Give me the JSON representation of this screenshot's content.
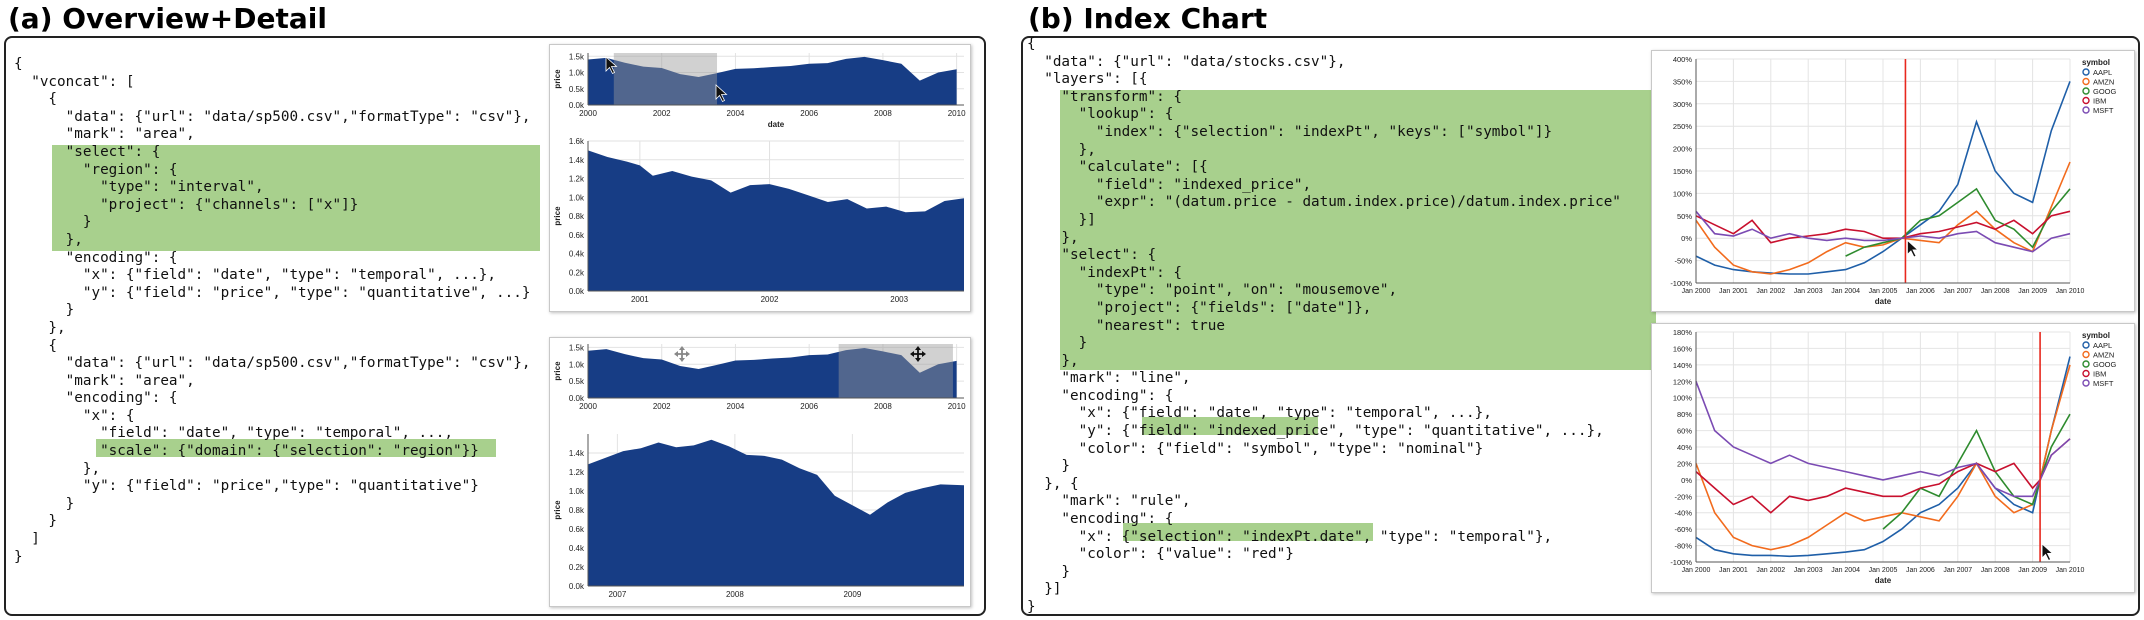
{
  "panel_a": {
    "title": "(a) Overview+Detail",
    "code_lines": [
      "{",
      "  \"vconcat\": [",
      "    {",
      "      \"data\": {\"url\": \"data/sp500.csv\",\"formatType\": \"csv\"},",
      "      \"mark\": \"area\",",
      "      \"select\": {",
      "        \"region\": {",
      "          \"type\": \"interval\",",
      "          \"project\": {\"channels\": [\"x\"]}",
      "        }",
      "      },",
      "      \"encoding\": {",
      "        \"x\": {\"field\": \"date\", \"type\": \"temporal\", ...},",
      "        \"y\": {\"field\": \"price\", \"type\": \"quantitative\", ...}",
      "      }",
      "    },",
      "    {",
      "      \"data\": {\"url\": \"data/sp500.csv\",\"formatType\": \"csv\"},",
      "      \"mark\": \"area\",",
      "      \"encoding\": {",
      "        \"x\": {",
      "          \"field\": \"date\", \"type\": \"temporal\", ...,",
      "          \"scale\": {\"domain\": {\"selection\": \"region\"}}",
      "        },",
      "        \"y\": {\"field\": \"price\",\"type\": \"quantitative\"}",
      "      }",
      "    }",
      "  ]",
      "}"
    ]
  },
  "panel_b": {
    "title": "(b) Index Chart",
    "code_lines": [
      "{",
      "  \"data\": {\"url\": \"data/stocks.csv\"},",
      "  \"layers\": [{",
      "    \"transform\": {",
      "      \"lookup\": {",
      "        \"index\": {\"selection\": \"indexPt\", \"keys\": [\"symbol\"]}",
      "      },",
      "      \"calculate\": [{",
      "        \"field\": \"indexed_price\",",
      "        \"expr\": \"(datum.price - datum.index.price)/datum.index.price\"",
      "      }]",
      "    },",
      "    \"select\": {",
      "      \"indexPt\": {",
      "        \"type\": \"point\", \"on\": \"mousemove\",",
      "        \"project\": {\"fields\": [\"date\"]},",
      "        \"nearest\": true",
      "      }",
      "    },",
      "    \"mark\": \"line\",",
      "    \"encoding\": {",
      "      \"x\": {\"field\": \"date\", \"type\": \"temporal\", ...},",
      "      \"y\": {\"field\": \"indexed_price\", \"type\": \"quantitative\", ...},",
      "      \"color\": {\"field\": \"symbol\", \"type\": \"nominal\"}",
      "    }",
      "  }, {",
      "    \"mark\": \"rule\",",
      "    \"encoding\": {",
      "      \"x\": {\"selection\": \"indexPt.date\", \"type\": \"temporal\"},",
      "      \"color\": {\"value\": \"red\"}",
      "    }",
      "  }]",
      "}"
    ]
  },
  "colors": {
    "highlight": "#a8d08d",
    "area_fill": "#173d85",
    "brush": "#c8c8c8",
    "rule": "#e8281e",
    "AAPL": "#1f5fa8",
    "AMZN": "#f26b1d",
    "GOOG": "#2e8b2e",
    "IBM": "#c8102e",
    "MSFT": "#7b4bb3"
  },
  "chart_data": [
    {
      "id": "a1-overview",
      "type": "area",
      "xlabel": "date",
      "ylabel": "price",
      "x_ticks": [
        "2000",
        "2002",
        "2004",
        "2006",
        "2008",
        "2010"
      ],
      "y_ticks": [
        "0.0k",
        "0.5k",
        "1.0k",
        "1.5k"
      ],
      "ylim": [
        0,
        1600
      ],
      "xlim": [
        2000,
        2010.2
      ],
      "brush": [
        2000.7,
        2003.5
      ],
      "x": [
        2000.0,
        2000.5,
        2001.0,
        2001.5,
        2002.0,
        2002.5,
        2003.0,
        2003.5,
        2004.0,
        2004.5,
        2005.0,
        2005.5,
        2006.0,
        2006.5,
        2007.0,
        2007.5,
        2008.0,
        2008.5,
        2009.0,
        2009.5,
        2010.0
      ],
      "values": [
        1400,
        1450,
        1300,
        1180,
        1140,
        950,
        860,
        980,
        1110,
        1130,
        1170,
        1200,
        1270,
        1290,
        1420,
        1480,
        1380,
        1270,
        750,
        1000,
        1100
      ]
    },
    {
      "id": "a1-detail",
      "type": "area",
      "xlabel": "",
      "ylabel": "price",
      "x_ticks": [
        "2001",
        "2002",
        "2003"
      ],
      "y_ticks": [
        "0.0k",
        "0.2k",
        "0.4k",
        "0.6k",
        "0.8k",
        "1.0k",
        "1.2k",
        "1.4k",
        "1.6k"
      ],
      "ylim": [
        0,
        1600
      ],
      "xlim": [
        2000.6,
        2003.5
      ],
      "x": [
        2000.6,
        2000.75,
        2000.9,
        2001.0,
        2001.1,
        2001.25,
        2001.4,
        2001.55,
        2001.7,
        2001.85,
        2002.0,
        2002.15,
        2002.3,
        2002.45,
        2002.6,
        2002.75,
        2002.9,
        2003.05,
        2003.2,
        2003.35,
        2003.5
      ],
      "values": [
        1500,
        1430,
        1380,
        1340,
        1230,
        1280,
        1220,
        1180,
        1050,
        1130,
        1140,
        1090,
        1020,
        950,
        980,
        880,
        900,
        840,
        850,
        960,
        990
      ]
    },
    {
      "id": "a2-overview",
      "type": "area",
      "xlabel": "",
      "ylabel": "price",
      "x_ticks": [
        "2000",
        "2002",
        "2004",
        "2006",
        "2008",
        "2010"
      ],
      "y_ticks": [
        "0.0k",
        "0.5k",
        "1.0k",
        "1.5k"
      ],
      "ylim": [
        0,
        1600
      ],
      "xlim": [
        2000,
        2010.2
      ],
      "brush": [
        2006.8,
        2009.9
      ],
      "x": [
        2000.0,
        2000.5,
        2001.0,
        2001.5,
        2002.0,
        2002.5,
        2003.0,
        2003.5,
        2004.0,
        2004.5,
        2005.0,
        2005.5,
        2006.0,
        2006.5,
        2007.0,
        2007.5,
        2008.0,
        2008.5,
        2009.0,
        2009.5,
        2010.0
      ],
      "values": [
        1400,
        1450,
        1300,
        1180,
        1140,
        950,
        860,
        980,
        1110,
        1130,
        1170,
        1200,
        1270,
        1290,
        1420,
        1480,
        1380,
        1270,
        750,
        1000,
        1100
      ]
    },
    {
      "id": "a2-detail",
      "type": "area",
      "xlabel": "",
      "ylabel": "price",
      "x_ticks": [
        "2007",
        "2008",
        "2009"
      ],
      "y_ticks": [
        "0.0k",
        "0.2k",
        "0.4k",
        "0.6k",
        "0.8k",
        "1.0k",
        "1.2k",
        "1.4k"
      ],
      "ylim": [
        0,
        1600
      ],
      "xlim": [
        2006.75,
        2009.95
      ],
      "x": [
        2006.75,
        2006.9,
        2007.05,
        2007.2,
        2007.35,
        2007.5,
        2007.65,
        2007.8,
        2007.95,
        2008.1,
        2008.25,
        2008.4,
        2008.55,
        2008.7,
        2008.85,
        2009.0,
        2009.15,
        2009.3,
        2009.45,
        2009.6,
        2009.75,
        2009.95
      ],
      "values": [
        1280,
        1350,
        1420,
        1450,
        1510,
        1460,
        1480,
        1540,
        1470,
        1380,
        1370,
        1330,
        1240,
        1170,
        950,
        850,
        750,
        880,
        980,
        1030,
        1070,
        1060
      ]
    },
    {
      "id": "b-top",
      "type": "line",
      "xlabel": "date",
      "ylabel": "",
      "x_ticks": [
        "Jan 2000",
        "Jan 2001",
        "Jan 2002",
        "Jan 2003",
        "Jan 2004",
        "Jan 2005",
        "Jan 2006",
        "Jan 2007",
        "Jan 2008",
        "Jan 2009",
        "Jan 2010"
      ],
      "y_ticks": [
        "-100%",
        "-50%",
        "0%",
        "50%",
        "100%",
        "150%",
        "200%",
        "250%",
        "300%",
        "350%",
        "400%"
      ],
      "ylim": [
        -100,
        400
      ],
      "xlim": [
        2000,
        2010
      ],
      "legend_title": "symbol",
      "index_date": 2005.6,
      "x": [
        2000,
        2000.5,
        2001,
        2001.5,
        2002,
        2002.5,
        2003,
        2003.5,
        2004,
        2004.5,
        2005,
        2005.5,
        2006,
        2006.5,
        2007,
        2007.5,
        2008,
        2008.5,
        2009,
        2009.5,
        2010
      ],
      "series": [
        {
          "name": "AAPL",
          "values": [
            -40,
            -60,
            -70,
            -75,
            -78,
            -80,
            -80,
            -75,
            -70,
            -55,
            -30,
            0,
            30,
            60,
            120,
            260,
            150,
            100,
            80,
            240,
            350
          ]
        },
        {
          "name": "AMZN",
          "values": [
            40,
            -20,
            -60,
            -75,
            -80,
            -70,
            -55,
            -30,
            -10,
            -20,
            -15,
            0,
            -5,
            -10,
            30,
            60,
            20,
            -10,
            -30,
            70,
            170
          ]
        },
        {
          "name": "GOOG",
          "values": [
            null,
            null,
            null,
            null,
            null,
            null,
            null,
            null,
            -40,
            -20,
            -10,
            0,
            40,
            50,
            80,
            110,
            40,
            20,
            -20,
            60,
            110
          ]
        },
        {
          "name": "IBM",
          "values": [
            50,
            30,
            10,
            40,
            -10,
            0,
            5,
            10,
            20,
            15,
            0,
            0,
            10,
            15,
            25,
            35,
            20,
            40,
            10,
            50,
            60
          ]
        },
        {
          "name": "MSFT",
          "values": [
            60,
            10,
            5,
            20,
            0,
            10,
            0,
            -5,
            0,
            -5,
            -5,
            0,
            5,
            0,
            10,
            15,
            -10,
            -20,
            -30,
            0,
            10
          ]
        }
      ]
    },
    {
      "id": "b-bottom",
      "type": "line",
      "xlabel": "date",
      "ylabel": "",
      "x_ticks": [
        "Jan 2000",
        "Jan 2001",
        "Jan 2002",
        "Jan 2003",
        "Jan 2004",
        "Jan 2005",
        "Jan 2006",
        "Jan 2007",
        "Jan 2008",
        "Jan 2009",
        "Jan 2010"
      ],
      "y_ticks": [
        "-100%",
        "-80%",
        "-60%",
        "-40%",
        "-20%",
        "0%",
        "20%",
        "40%",
        "60%",
        "80%",
        "100%",
        "120%",
        "140%",
        "160%",
        "180%"
      ],
      "ylim": [
        -100,
        180
      ],
      "xlim": [
        2000,
        2010
      ],
      "legend_title": "symbol",
      "index_date": 2009.2,
      "x": [
        2000,
        2000.5,
        2001,
        2001.5,
        2002,
        2002.5,
        2003,
        2003.5,
        2004,
        2004.5,
        2005,
        2005.5,
        2006,
        2006.5,
        2007,
        2007.5,
        2008,
        2008.5,
        2009,
        2009.2,
        2009.5,
        2010
      ],
      "series": [
        {
          "name": "AAPL",
          "values": [
            -70,
            -85,
            -90,
            -92,
            -92,
            -93,
            -92,
            -90,
            -88,
            -85,
            -75,
            -60,
            -40,
            -30,
            -10,
            20,
            -10,
            -30,
            -40,
            0,
            60,
            150
          ]
        },
        {
          "name": "AMZN",
          "values": [
            20,
            -40,
            -70,
            -80,
            -85,
            -80,
            -70,
            -55,
            -40,
            -50,
            -45,
            -40,
            -45,
            -50,
            -20,
            20,
            -20,
            -40,
            -30,
            0,
            60,
            140
          ]
        },
        {
          "name": "GOOG",
          "values": [
            null,
            null,
            null,
            null,
            null,
            null,
            null,
            null,
            null,
            null,
            -60,
            -40,
            -10,
            -20,
            20,
            60,
            10,
            -20,
            -30,
            0,
            40,
            80
          ]
        },
        {
          "name": "IBM",
          "values": [
            10,
            -10,
            -30,
            -20,
            -40,
            -20,
            -25,
            -20,
            -10,
            -15,
            -20,
            -20,
            -10,
            -5,
            10,
            20,
            10,
            20,
            -10,
            0,
            30,
            50
          ]
        },
        {
          "name": "MSFT",
          "values": [
            120,
            60,
            40,
            30,
            20,
            30,
            20,
            15,
            10,
            5,
            0,
            5,
            10,
            5,
            15,
            20,
            -10,
            -20,
            -20,
            0,
            30,
            50
          ]
        }
      ]
    }
  ]
}
